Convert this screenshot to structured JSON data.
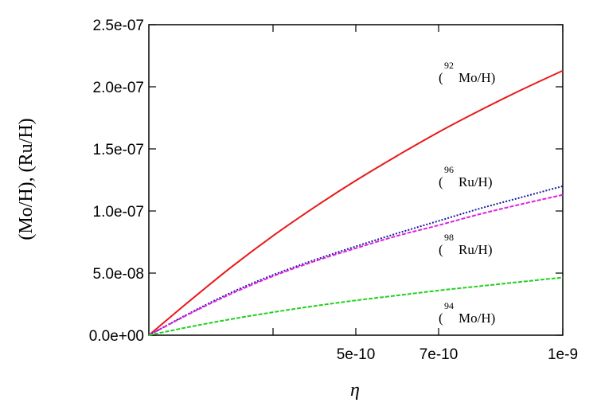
{
  "chart_data": {
    "type": "line",
    "xlabel": "η",
    "ylabel": "(Mo/H), (Ru/H)",
    "xlim": [
      0,
      1e-09
    ],
    "ylim": [
      0,
      2.5e-07
    ],
    "x_ticks": [
      {
        "value": 3e-10,
        "label": ""
      },
      {
        "value": 5e-10,
        "label": "5e-10"
      },
      {
        "value": 7e-10,
        "label": "7e-10"
      },
      {
        "value": 1e-09,
        "label": "1e-9"
      }
    ],
    "y_ticks": [
      {
        "value": 0,
        "label": "0.0e+00"
      },
      {
        "value": 5e-08,
        "label": "5.0e-08"
      },
      {
        "value": 1e-07,
        "label": "1.0e-07"
      },
      {
        "value": 1.5e-07,
        "label": "1.5e-07"
      },
      {
        "value": 2e-07,
        "label": "2.0e-07"
      },
      {
        "value": 2.5e-07,
        "label": "2.5e-07"
      }
    ],
    "x": [
      0,
      1e-10,
      2e-10,
      3e-10,
      4e-10,
      5e-10,
      6e-10,
      7e-10,
      8e-10,
      9e-10,
      1e-09
    ],
    "series": [
      {
        "sup": "92",
        "label": "Mo/H",
        "color": "#e8191a",
        "dash": "solid",
        "values": [
          0,
          2.8e-08,
          5.5e-08,
          8e-08,
          1.03e-07,
          1.245e-07,
          1.445e-07,
          1.635e-07,
          1.81e-07,
          1.975e-07,
          2.13e-07
        ]
      },
      {
        "sup": "96",
        "label": "Ru/H",
        "color": "#1a1a9e",
        "dash": "dotted",
        "values": [
          0,
          1.8e-08,
          3.45e-08,
          4.85e-08,
          6.05e-08,
          7.15e-08,
          8.2e-08,
          9.2e-08,
          1.02e-07,
          1.11e-07,
          1.2e-07
        ]
      },
      {
        "sup": "98",
        "label": "Ru/H",
        "color": "#e020e0",
        "dash": "dashed",
        "values": [
          0,
          1.75e-08,
          3.35e-08,
          4.75e-08,
          5.95e-08,
          7e-08,
          8e-08,
          8.85e-08,
          9.75e-08,
          1.055e-07,
          1.13e-07
        ]
      },
      {
        "sup": "94",
        "label": "Mo/H",
        "color": "#20d020",
        "dash": "dashed",
        "values": [
          0,
          6.8e-09,
          1.3e-08,
          1.85e-08,
          2.35e-08,
          2.8e-08,
          3.2e-08,
          3.6e-08,
          3.95e-08,
          4.3e-08,
          4.65e-08
        ]
      }
    ],
    "grid": false,
    "legend": "inline labels beside curves"
  }
}
